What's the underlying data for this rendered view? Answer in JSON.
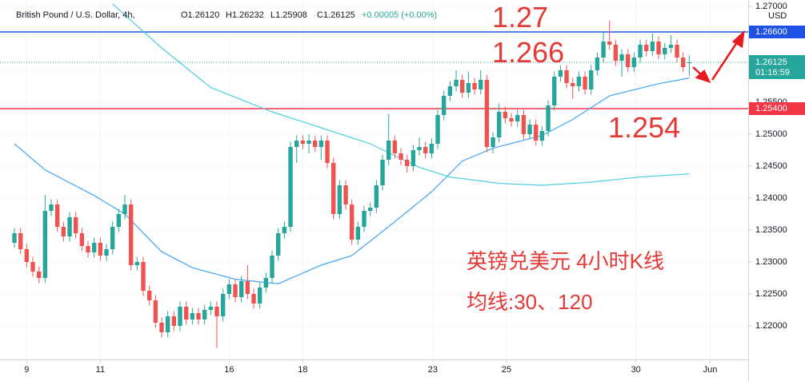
{
  "chart_data": {
    "type": "candlestick",
    "header": {
      "symbol": "British Pound / U.S. Dollar, 4h,",
      "open": "O1.26120",
      "high": "H1.26232",
      "low": "L1.25908",
      "close": "C1.26125",
      "change": "+0.00005 (+0.00%)"
    },
    "currency": "USD",
    "timer": "01:16:59",
    "up_color": "#26a69a",
    "down_color": "#ef5350",
    "ylim": [
      1.21475,
      1.271
    ],
    "xlim": [
      -2.35,
      119.6
    ],
    "yticks": [
      {
        "value": 1.22,
        "label": "1.22000"
      },
      {
        "value": 1.225,
        "label": "1.22500"
      },
      {
        "value": 1.23,
        "label": "1.23000"
      },
      {
        "value": 1.235,
        "label": "1.23500"
      },
      {
        "value": 1.24,
        "label": "1.24000"
      },
      {
        "value": 1.245,
        "label": "1.24500"
      },
      {
        "value": 1.25,
        "label": "1.25000"
      },
      {
        "value": 1.255,
        "label": "1.25500"
      },
      {
        "value": 1.26,
        "label": "1.26000"
      },
      {
        "value": 1.27,
        "label": "1.27000"
      }
    ],
    "xticks": [
      {
        "value": 2,
        "label": "9"
      },
      {
        "value": 14,
        "label": "11"
      },
      {
        "value": 35,
        "label": "16"
      },
      {
        "value": 47,
        "label": "18"
      },
      {
        "value": 68.2,
        "label": "23"
      },
      {
        "value": 80.2,
        "label": "25"
      },
      {
        "value": 101.3,
        "label": "30"
      },
      {
        "value": 113.4,
        "label": "Jun"
      }
    ],
    "grid": true,
    "ohlc": [
      [
        1.233,
        1.2353,
        1.2322,
        1.2345
      ],
      [
        1.2345,
        1.2353,
        1.2312,
        1.232
      ],
      [
        1.232,
        1.2328,
        1.2292,
        1.23
      ],
      [
        1.23,
        1.2308,
        1.2277,
        1.2285
      ],
      [
        1.2285,
        1.2293,
        1.2267,
        1.2275
      ],
      [
        1.2275,
        1.2405,
        1.2267,
        1.238
      ],
      [
        1.238,
        1.2398,
        1.2372,
        1.239
      ],
      [
        1.239,
        1.2398,
        1.2347,
        1.2355
      ],
      [
        1.2355,
        1.2363,
        1.2332,
        1.234
      ],
      [
        1.234,
        1.2378,
        1.2332,
        1.237
      ],
      [
        1.237,
        1.2378,
        1.2337,
        1.2345
      ],
      [
        1.2345,
        1.2353,
        1.2317,
        1.2325
      ],
      [
        1.2325,
        1.2333,
        1.2307,
        1.2315
      ],
      [
        1.2315,
        1.2338,
        1.2307,
        1.233
      ],
      [
        1.233,
        1.2338,
        1.2302,
        1.231
      ],
      [
        1.231,
        1.2328,
        1.2302,
        1.232
      ],
      [
        1.232,
        1.2363,
        1.2312,
        1.2355
      ],
      [
        1.2355,
        1.2383,
        1.2347,
        1.2375
      ],
      [
        1.2375,
        1.2405,
        1.2367,
        1.239
      ],
      [
        1.239,
        1.2398,
        1.2287,
        1.2295
      ],
      [
        1.2295,
        1.2308,
        1.2287,
        1.23
      ],
      [
        1.23,
        1.2308,
        1.2247,
        1.2255
      ],
      [
        1.2255,
        1.2263,
        1.2232,
        1.224
      ],
      [
        1.224,
        1.2248,
        1.2197,
        1.2205
      ],
      [
        1.2205,
        1.2213,
        1.2182,
        1.219
      ],
      [
        1.219,
        1.2223,
        1.2182,
        1.2215
      ],
      [
        1.2215,
        1.2223,
        1.2192,
        1.22
      ],
      [
        1.22,
        1.2238,
        1.2192,
        1.223
      ],
      [
        1.223,
        1.2238,
        1.2202,
        1.221
      ],
      [
        1.221,
        1.2228,
        1.2202,
        1.222
      ],
      [
        1.222,
        1.2228,
        1.2202,
        1.221
      ],
      [
        1.221,
        1.2233,
        1.2202,
        1.2225
      ],
      [
        1.2225,
        1.2238,
        1.2217,
        1.223
      ],
      [
        1.223,
        1.2238,
        1.2165,
        1.2215
      ],
      [
        1.2215,
        1.2258,
        1.2207,
        1.225
      ],
      [
        1.225,
        1.2273,
        1.2242,
        1.2265
      ],
      [
        1.2265,
        1.2273,
        1.2237,
        1.2245
      ],
      [
        1.2245,
        1.2278,
        1.2237,
        1.227
      ],
      [
        1.227,
        1.2295,
        1.2242,
        1.225
      ],
      [
        1.225,
        1.2258,
        1.2227,
        1.2235
      ],
      [
        1.2235,
        1.2268,
        1.2227,
        1.226
      ],
      [
        1.226,
        1.2283,
        1.2252,
        1.2275
      ],
      [
        1.2275,
        1.2318,
        1.2267,
        1.231
      ],
      [
        1.231,
        1.2353,
        1.2302,
        1.2345
      ],
      [
        1.2345,
        1.2363,
        1.2337,
        1.2355
      ],
      [
        1.2355,
        1.2488,
        1.2347,
        1.248
      ],
      [
        1.248,
        1.2498,
        1.2455,
        1.249
      ],
      [
        1.249,
        1.2498,
        1.2477,
        1.2485
      ],
      [
        1.2485,
        1.25,
        1.247,
        1.249
      ],
      [
        1.249,
        1.2498,
        1.2472,
        1.248
      ],
      [
        1.248,
        1.2498,
        1.246,
        1.249
      ],
      [
        1.249,
        1.2498,
        1.2447,
        1.2455
      ],
      [
        1.2455,
        1.2463,
        1.2367,
        1.2375
      ],
      [
        1.2375,
        1.2428,
        1.2367,
        1.242
      ],
      [
        1.242,
        1.2428,
        1.2382,
        1.239
      ],
      [
        1.239,
        1.2398,
        1.2327,
        1.2335
      ],
      [
        1.2335,
        1.2363,
        1.2327,
        1.2355
      ],
      [
        1.2355,
        1.2388,
        1.2347,
        1.238
      ],
      [
        1.238,
        1.2393,
        1.2372,
        1.2385
      ],
      [
        1.2385,
        1.2428,
        1.2377,
        1.242
      ],
      [
        1.242,
        1.2468,
        1.2412,
        1.246
      ],
      [
        1.246,
        1.2532,
        1.2452,
        1.249
      ],
      [
        1.249,
        1.2498,
        1.2462,
        1.247
      ],
      [
        1.247,
        1.2478,
        1.2452,
        1.246
      ],
      [
        1.246,
        1.2468,
        1.244,
        1.245
      ],
      [
        1.245,
        1.2483,
        1.2442,
        1.2475
      ],
      [
        1.2475,
        1.2495,
        1.2467,
        1.248
      ],
      [
        1.248,
        1.2488,
        1.2462,
        1.247
      ],
      [
        1.247,
        1.2493,
        1.2462,
        1.2485
      ],
      [
        1.2485,
        1.2538,
        1.2477,
        1.253
      ],
      [
        1.253,
        1.2568,
        1.2522,
        1.256
      ],
      [
        1.256,
        1.2583,
        1.2552,
        1.2575
      ],
      [
        1.2575,
        1.26,
        1.2567,
        1.2585
      ],
      [
        1.2585,
        1.2593,
        1.2557,
        1.2565
      ],
      [
        1.2565,
        1.2598,
        1.2557,
        1.258
      ],
      [
        1.258,
        1.2588,
        1.2562,
        1.257
      ],
      [
        1.257,
        1.26,
        1.2562,
        1.2585
      ],
      [
        1.2585,
        1.2593,
        1.2472,
        1.248
      ],
      [
        1.248,
        1.2503,
        1.247,
        1.2495
      ],
      [
        1.2495,
        1.2548,
        1.2487,
        1.2535
      ],
      [
        1.2535,
        1.2543,
        1.2517,
        1.2525
      ],
      [
        1.2525,
        1.2533,
        1.2512,
        1.252
      ],
      [
        1.252,
        1.2538,
        1.2512,
        1.253
      ],
      [
        1.253,
        1.2538,
        1.2492,
        1.25
      ],
      [
        1.25,
        1.2523,
        1.2492,
        1.2515
      ],
      [
        1.2515,
        1.2523,
        1.2482,
        1.249
      ],
      [
        1.249,
        1.2513,
        1.2482,
        1.2505
      ],
      [
        1.2505,
        1.2553,
        1.2497,
        1.2545
      ],
      [
        1.2545,
        1.2598,
        1.2537,
        1.259
      ],
      [
        1.259,
        1.2608,
        1.2582,
        1.26
      ],
      [
        1.26,
        1.2608,
        1.2572,
        1.258
      ],
      [
        1.258,
        1.2588,
        1.2555,
        1.2575
      ],
      [
        1.2575,
        1.2598,
        1.2567,
        1.259
      ],
      [
        1.259,
        1.2598,
        1.2562,
        1.257
      ],
      [
        1.257,
        1.2608,
        1.2562,
        1.26
      ],
      [
        1.26,
        1.2628,
        1.2592,
        1.262
      ],
      [
        1.262,
        1.266,
        1.2612,
        1.2645
      ],
      [
        1.2645,
        1.2678,
        1.2632,
        1.264
      ],
      [
        1.264,
        1.2648,
        1.2607,
        1.2615
      ],
      [
        1.2615,
        1.2633,
        1.259,
        1.2625
      ],
      [
        1.2625,
        1.2633,
        1.2597,
        1.2605
      ],
      [
        1.2605,
        1.2628,
        1.2597,
        1.262
      ],
      [
        1.262,
        1.2648,
        1.2612,
        1.264
      ],
      [
        1.264,
        1.2648,
        1.2622,
        1.263
      ],
      [
        1.263,
        1.2658,
        1.2622,
        1.2645
      ],
      [
        1.2645,
        1.2653,
        1.2617,
        1.2625
      ],
      [
        1.2625,
        1.2643,
        1.2617,
        1.2635
      ],
      [
        1.2635,
        1.2655,
        1.2627,
        1.264
      ],
      [
        1.264,
        1.2648,
        1.2612,
        1.262
      ],
      [
        1.262,
        1.2628,
        1.2597,
        1.2605
      ],
      [
        1.2612,
        1.26232,
        1.25908,
        1.26125
      ]
    ],
    "ma": [
      {
        "color": "#42a5f5",
        "x": [
          0,
          5,
          13,
          18,
          24,
          29,
          36,
          43,
          50,
          55,
          62,
          68,
          73,
          78,
          86,
          91,
          97,
          105,
          110
        ],
        "values": [
          1.2485,
          1.2444,
          1.2404,
          1.2375,
          1.2316,
          1.2291,
          1.2273,
          1.2266,
          1.2295,
          1.231,
          1.2363,
          1.241,
          1.2458,
          1.2478,
          1.2498,
          1.2523,
          1.256,
          1.2579,
          1.2588
        ]
      },
      {
        "color": "#4dd0e1",
        "x": [
          16,
          24,
          32,
          42,
          50,
          58,
          66,
          71,
          79,
          86,
          94,
          102,
          110
        ],
        "values": [
          1.2704,
          1.2635,
          1.2573,
          1.2535,
          1.251,
          1.2485,
          1.2448,
          1.2433,
          1.2423,
          1.242,
          1.2425,
          1.2433,
          1.2438
        ]
      }
    ],
    "levels": [
      {
        "value": 1.266,
        "label": "1.26600",
        "color": "#1e53e5"
      },
      {
        "value": 1.254,
        "label": "1.25400",
        "color": "#f23645"
      }
    ],
    "annotations": [
      "1.27",
      "1.266",
      "1.254",
      "英镑兑美元 4小时K线",
      "均线:30、120"
    ]
  }
}
